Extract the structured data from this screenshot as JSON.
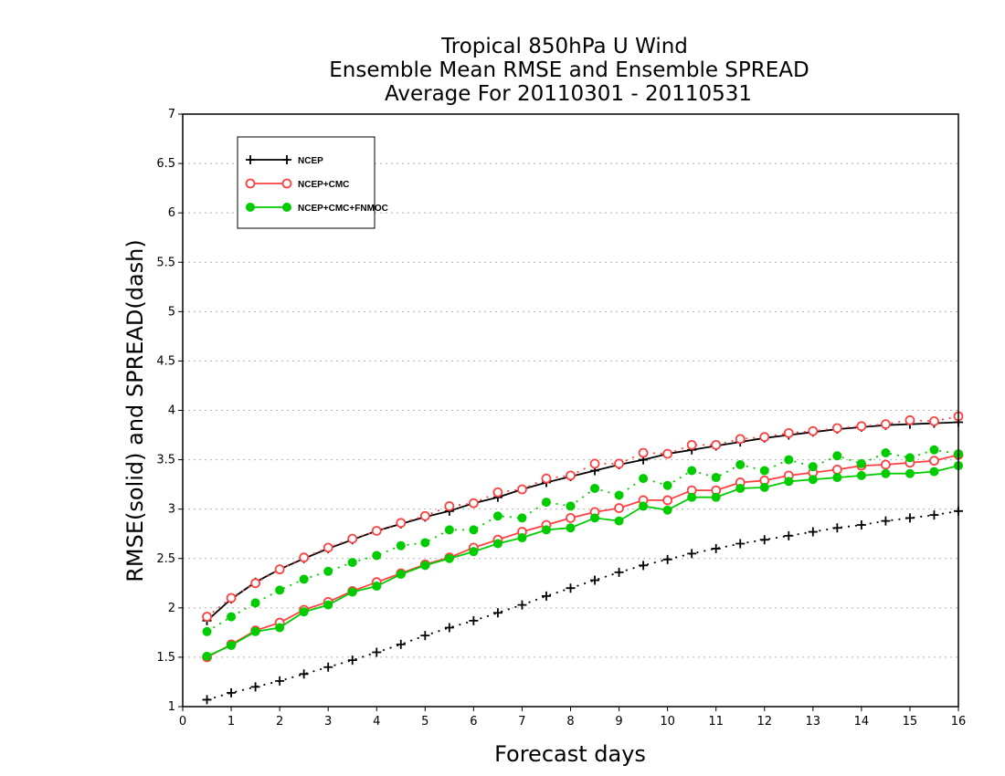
{
  "chart_data": {
    "type": "line",
    "title": [
      "Tropical 850hPa U Wind",
      "Ensemble Mean RMSE and Ensemble SPREAD",
      "Average For 20110301 - 20110531"
    ],
    "xlabel": "Forecast days",
    "ylabel": "RMSE(solid) and SPREAD(dash)",
    "xlim": [
      0,
      16
    ],
    "ylim": [
      1,
      7
    ],
    "xticks": [
      "0",
      "1",
      "2",
      "3",
      "4",
      "5",
      "6",
      "7",
      "8",
      "9",
      "10",
      "11",
      "12",
      "13",
      "14",
      "15",
      "16"
    ],
    "yticks": [
      "1",
      "1.5",
      "2",
      "2.5",
      "3",
      "3.5",
      "4",
      "4.5",
      "5",
      "5.5",
      "6",
      "6.5",
      "7"
    ],
    "grid": true,
    "legend_position": "top-left",
    "x": [
      0.5,
      1,
      1.5,
      2,
      2.5,
      3,
      3.5,
      4,
      4.5,
      5,
      5.5,
      6,
      6.5,
      7,
      7.5,
      8,
      8.5,
      9,
      9.5,
      10,
      10.5,
      11,
      11.5,
      12,
      12.5,
      13,
      13.5,
      14,
      14.5,
      15,
      15.5,
      16
    ],
    "series": [
      {
        "name": "NCEP",
        "color": "#000000",
        "marker": "plus",
        "rmse": [
          1.87,
          2.09,
          2.26,
          2.39,
          2.5,
          2.6,
          2.69,
          2.78,
          2.85,
          2.92,
          2.98,
          3.06,
          3.12,
          3.2,
          3.27,
          3.33,
          3.39,
          3.45,
          3.5,
          3.56,
          3.6,
          3.64,
          3.68,
          3.72,
          3.75,
          3.78,
          3.81,
          3.83,
          3.85,
          3.86,
          3.87,
          3.88
        ],
        "spread": [
          1.07,
          1.14,
          1.2,
          1.26,
          1.33,
          1.4,
          1.47,
          1.55,
          1.63,
          1.72,
          1.8,
          1.87,
          1.95,
          2.03,
          2.12,
          2.2,
          2.28,
          2.36,
          2.43,
          2.49,
          2.55,
          2.6,
          2.65,
          2.69,
          2.73,
          2.77,
          2.81,
          2.84,
          2.88,
          2.91,
          2.94,
          2.98
        ]
      },
      {
        "name": "NCEP+CMC",
        "color": "#ff4040",
        "marker": "open-circle",
        "rmse": [
          1.5,
          1.63,
          1.77,
          1.85,
          1.98,
          2.06,
          2.17,
          2.26,
          2.35,
          2.44,
          2.51,
          2.61,
          2.69,
          2.77,
          2.84,
          2.91,
          2.97,
          3.01,
          3.09,
          3.09,
          3.19,
          3.19,
          3.27,
          3.29,
          3.34,
          3.37,
          3.4,
          3.44,
          3.45,
          3.47,
          3.49,
          3.55
        ],
        "spread": [
          1.91,
          2.1,
          2.25,
          2.39,
          2.51,
          2.61,
          2.7,
          2.78,
          2.86,
          2.93,
          3.03,
          3.06,
          3.17,
          3.2,
          3.31,
          3.34,
          3.46,
          3.46,
          3.57,
          3.56,
          3.65,
          3.65,
          3.71,
          3.73,
          3.77,
          3.79,
          3.82,
          3.84,
          3.86,
          3.9,
          3.89,
          3.94
        ]
      },
      {
        "name": "NCEP+CMC+FNMOC",
        "color": "#00cc00",
        "marker": "filled-circle",
        "rmse": [
          1.51,
          1.62,
          1.76,
          1.8,
          1.96,
          2.03,
          2.16,
          2.22,
          2.34,
          2.43,
          2.5,
          2.57,
          2.65,
          2.71,
          2.79,
          2.81,
          2.91,
          2.88,
          3.03,
          2.99,
          3.12,
          3.12,
          3.21,
          3.22,
          3.28,
          3.3,
          3.32,
          3.34,
          3.36,
          3.36,
          3.38,
          3.44
        ],
        "spread": [
          1.76,
          1.91,
          2.05,
          2.18,
          2.29,
          2.37,
          2.46,
          2.53,
          2.63,
          2.66,
          2.79,
          2.79,
          2.93,
          2.91,
          3.07,
          3.03,
          3.21,
          3.14,
          3.31,
          3.24,
          3.39,
          3.32,
          3.45,
          3.39,
          3.5,
          3.43,
          3.54,
          3.46,
          3.57,
          3.52,
          3.6,
          3.56
        ]
      }
    ]
  }
}
